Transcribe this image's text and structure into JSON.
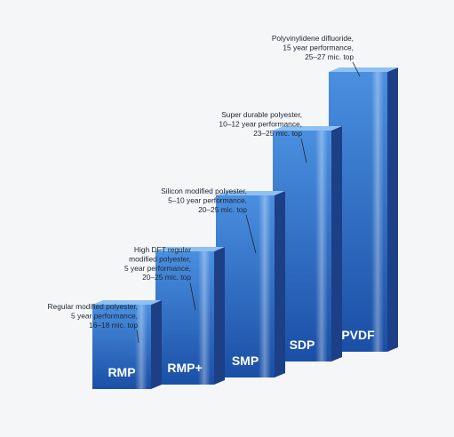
{
  "chart_data": {
    "type": "bar",
    "categories": [
      "RMP",
      "RMP+",
      "SMP",
      "SDP",
      "PVDF"
    ],
    "values": [
      1,
      2,
      3,
      4,
      5
    ],
    "annotations": [
      [
        "Regular modified polyester,",
        "5 year performance,",
        "16–18 mic. top"
      ],
      [
        "High DFT regular",
        "modified polyester,",
        "5 year performance,",
        "20–25 mic. top"
      ],
      [
        "Silicon modified polyester,",
        "5–10 year performance,",
        "20–25 mic. top"
      ],
      [
        "Super durable polyester,",
        "10–12 year performance,",
        "23–25 mic. top"
      ],
      [
        "Polyvinylidene difluoride,",
        "15 year performance,",
        "25–27 mic. top"
      ]
    ],
    "colors": {
      "front_top": "#4a8fe0",
      "front_bottom": "#1a4fa6",
      "side": "#1c3f86",
      "top": "#8ec0f2",
      "label": "#ffffff",
      "annotation": "#1f2733"
    }
  }
}
